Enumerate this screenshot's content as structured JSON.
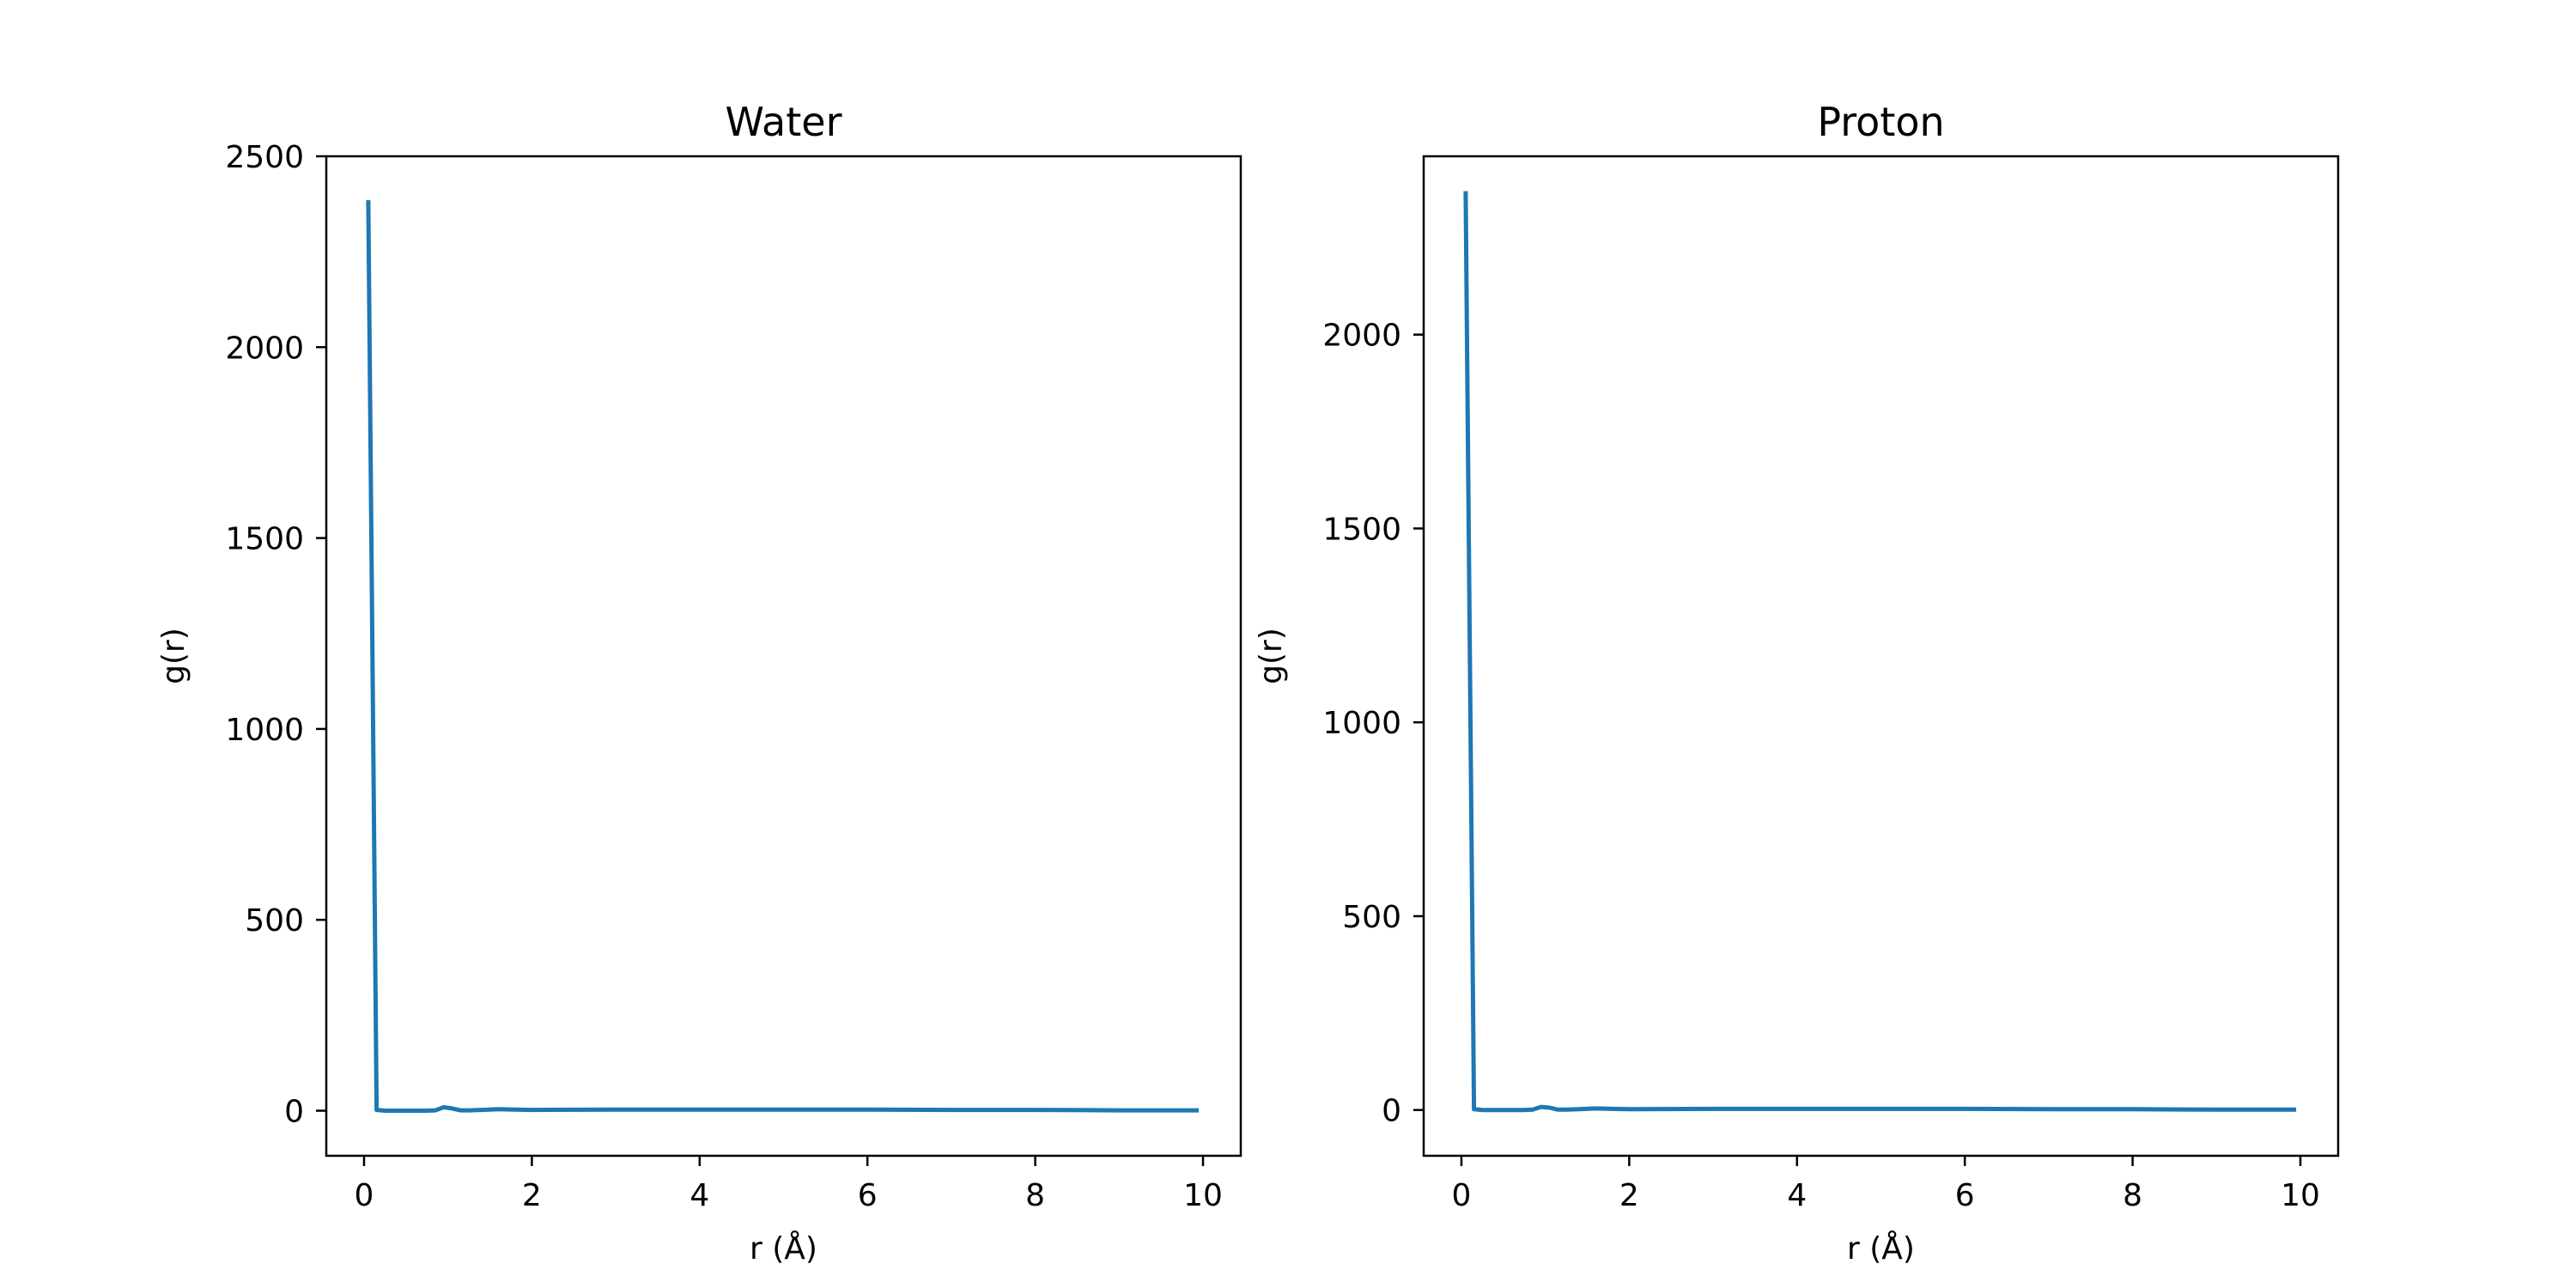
{
  "chart_data": [
    {
      "type": "line",
      "title": "Water",
      "xlabel": "r (Å)",
      "ylabel": "g(r)",
      "xlim": [
        -0.45,
        10.45
      ],
      "ylim": [
        -118,
        2500
      ],
      "xticks": [
        0,
        2,
        4,
        6,
        8,
        10
      ],
      "yticks": [
        0,
        500,
        1000,
        1500,
        2000,
        2500
      ],
      "grid": false,
      "color": "#1f77b4",
      "series": [
        {
          "x": [
            0.05,
            0.15,
            0.25,
            0.35,
            0.45,
            0.55,
            0.65,
            0.75,
            0.85,
            0.95,
            1.05,
            1.15,
            1.25,
            1.4,
            1.6,
            1.8,
            2.0,
            3.0,
            4.0,
            5.0,
            6.0,
            7.0,
            8.0,
            9.0,
            9.95
          ],
          "y": [
            2385,
            2,
            0,
            0,
            0,
            0,
            0,
            0,
            1,
            9,
            6,
            1,
            1,
            2,
            4,
            3,
            2,
            3,
            3,
            3,
            3,
            2,
            2,
            1,
            1
          ]
        }
      ]
    },
    {
      "type": "line",
      "title": "Proton",
      "xlabel": "r (Å)",
      "ylabel": "g(r)",
      "xlim": [
        -0.45,
        10.45
      ],
      "ylim": [
        -118,
        2460
      ],
      "xticks": [
        0,
        2,
        4,
        6,
        8,
        10
      ],
      "yticks": [
        0,
        500,
        1000,
        1500,
        2000
      ],
      "grid": false,
      "color": "#1f77b4",
      "series": [
        {
          "x": [
            0.05,
            0.15,
            0.25,
            0.35,
            0.45,
            0.55,
            0.65,
            0.75,
            0.85,
            0.95,
            1.05,
            1.15,
            1.25,
            1.4,
            1.6,
            1.8,
            2.0,
            3.0,
            4.0,
            5.0,
            6.0,
            7.0,
            8.0,
            9.0,
            9.95
          ],
          "y": [
            2370,
            2,
            0,
            0,
            0,
            0,
            0,
            0,
            1,
            8,
            6,
            1,
            1,
            2,
            4,
            3,
            2,
            3,
            3,
            3,
            3,
            2,
            2,
            1,
            1
          ]
        }
      ]
    }
  ]
}
